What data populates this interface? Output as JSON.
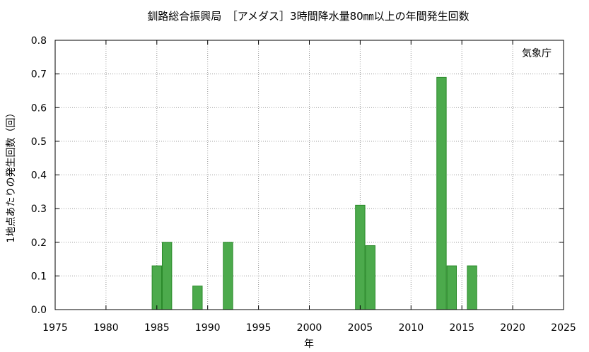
{
  "chart_data": {
    "type": "bar",
    "title": "釧路総合振興局　［アメダス］3時間降水量80㎜以上の年間発生回数",
    "xlabel": "年",
    "ylabel": "1地点あたりの発生回数（回）",
    "annotation": "気象庁",
    "xlim": [
      1975,
      2025
    ],
    "ylim": [
      0,
      0.8
    ],
    "x_ticks": [
      1975,
      1980,
      1985,
      1990,
      1995,
      2000,
      2005,
      2010,
      2015,
      2020,
      2025
    ],
    "y_ticks": [
      0.0,
      0.1,
      0.2,
      0.3,
      0.4,
      0.5,
      0.6,
      0.7,
      0.8
    ],
    "grid": true,
    "bar_color": "#4caa4c",
    "bar_edge_color": "#2a8a2a",
    "points": [
      {
        "x": 1985,
        "y": 0.13
      },
      {
        "x": 1986,
        "y": 0.2
      },
      {
        "x": 1989,
        "y": 0.07
      },
      {
        "x": 1992,
        "y": 0.2
      },
      {
        "x": 2005,
        "y": 0.31
      },
      {
        "x": 2006,
        "y": 0.19
      },
      {
        "x": 2013,
        "y": 0.69
      },
      {
        "x": 2014,
        "y": 0.13
      },
      {
        "x": 2016,
        "y": 0.13
      }
    ]
  }
}
